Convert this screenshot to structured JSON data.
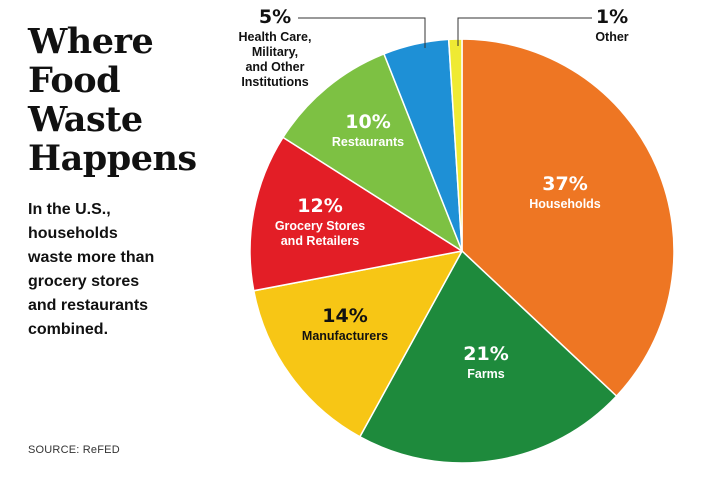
{
  "title": "Where\nFood\nWaste\nHappens",
  "subtitle": "In the U.S.,\nhouseholds\nwaste more than\ngrocery stores\nand restaurants\ncombined.",
  "source": "SOURCE: ReFED",
  "chart_data": {
    "type": "pie",
    "title": "Where Food Waste Happens",
    "start_angle_deg": 0,
    "direction": "clockwise",
    "slices": [
      {
        "percent_label": "37%",
        "label": [
          "Households"
        ],
        "value": 37,
        "color": "#EE7623",
        "text_color": "#ffffff"
      },
      {
        "percent_label": "21%",
        "label": [
          "Farms"
        ],
        "value": 21,
        "color": "#1E8A3C",
        "text_color": "#ffffff"
      },
      {
        "percent_label": "14%",
        "label": [
          "Manufacturers"
        ],
        "value": 14,
        "color": "#F7C615",
        "text_color": "#111111"
      },
      {
        "percent_label": "12%",
        "label": [
          "Grocery Stores",
          "and Retailers"
        ],
        "value": 12,
        "color": "#E31E26",
        "text_color": "#ffffff"
      },
      {
        "percent_label": "10%",
        "label": [
          "Restaurants"
        ],
        "value": 10,
        "color": "#7DC143",
        "text_color": "#ffffff"
      },
      {
        "percent_label": "5%",
        "label": [
          "Health Care,",
          "Military,",
          "and Other",
          "Institutions"
        ],
        "value": 5,
        "color": "#1E90D6",
        "text_color": "#111111",
        "callout": true
      },
      {
        "percent_label": "1%",
        "label": [
          "Other"
        ],
        "value": 1,
        "color": "#EFEA33",
        "text_color": "#111111",
        "callout": true
      }
    ]
  }
}
